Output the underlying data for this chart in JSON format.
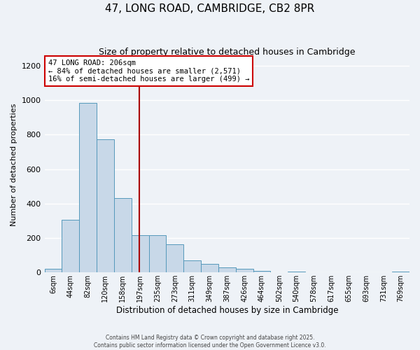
{
  "title": "47, LONG ROAD, CAMBRIDGE, CB2 8PR",
  "subtitle": "Size of property relative to detached houses in Cambridge",
  "xlabel": "Distribution of detached houses by size in Cambridge",
  "ylabel": "Number of detached properties",
  "footer1": "Contains HM Land Registry data © Crown copyright and database right 2025.",
  "footer2": "Contains public sector information licensed under the Open Government Licence v3.0.",
  "bin_labels": [
    "6sqm",
    "44sqm",
    "82sqm",
    "120sqm",
    "158sqm",
    "197sqm",
    "235sqm",
    "273sqm",
    "311sqm",
    "349sqm",
    "387sqm",
    "426sqm",
    "464sqm",
    "502sqm",
    "540sqm",
    "578sqm",
    "617sqm",
    "655sqm",
    "693sqm",
    "731sqm",
    "769sqm"
  ],
  "bar_values": [
    20,
    305,
    985,
    775,
    430,
    215,
    215,
    165,
    70,
    50,
    30,
    20,
    10,
    0,
    5,
    0,
    0,
    0,
    0,
    0,
    5
  ],
  "bar_color": "#c8d8e8",
  "bar_edge_color": "#5599bb",
  "vline_x_bin": 5,
  "vline_color": "#aa0000",
  "annotation_title": "47 LONG ROAD: 206sqm",
  "annotation_line1": "← 84% of detached houses are smaller (2,571)",
  "annotation_line2": "16% of semi-detached houses are larger (499) →",
  "annotation_box_facecolor": "#ffffff",
  "annotation_box_edgecolor": "#cc0000",
  "ylim": [
    0,
    1250
  ],
  "yticks": [
    0,
    200,
    400,
    600,
    800,
    1000,
    1200
  ],
  "background_color": "#eef2f7",
  "grid_color": "#ffffff"
}
